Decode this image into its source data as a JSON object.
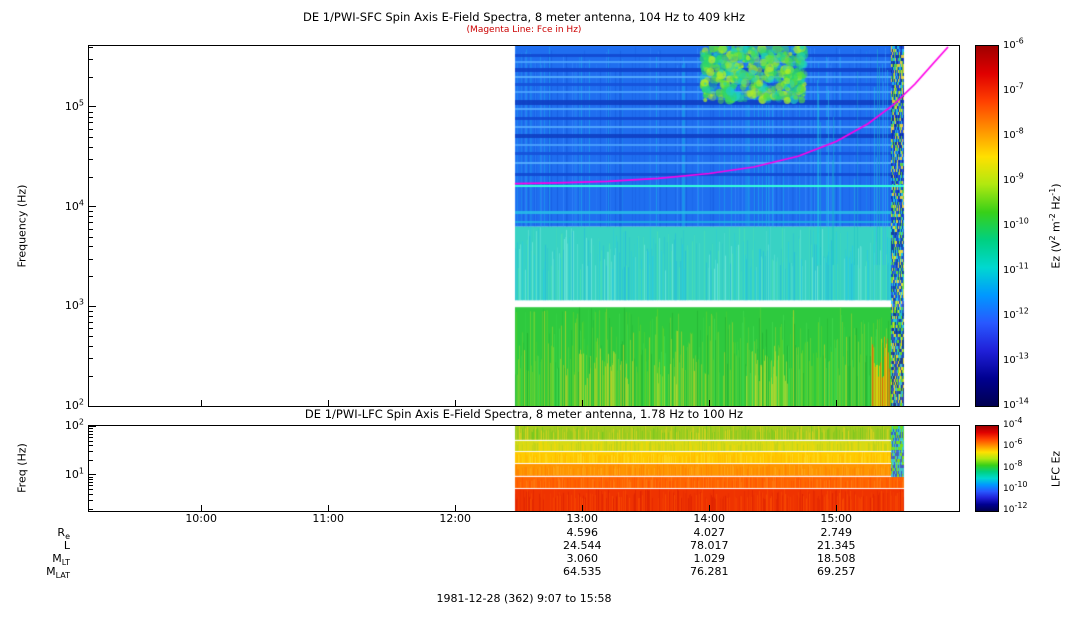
{
  "figure": {
    "footer": "1981-12-28 (362) 9:07 to 15:58",
    "background": "#ffffff"
  },
  "time_axis": {
    "range_hours": [
      9.1167,
      15.9667
    ],
    "start_label": "9:07",
    "end_label": "15:58",
    "ticks": [
      {
        "t": 10,
        "label": "10:00"
      },
      {
        "t": 11,
        "label": "11:00"
      },
      {
        "t": 12,
        "label": "12:00"
      },
      {
        "t": 13,
        "label": "13:00"
      },
      {
        "t": 14,
        "label": "14:00"
      },
      {
        "t": 15,
        "label": "15:00"
      }
    ]
  },
  "ephemeris": {
    "value_hours": [
      13,
      14,
      15
    ],
    "rows": [
      {
        "label": "R",
        "sub": "e",
        "values": [
          "4.596",
          "4.027",
          "2.749"
        ]
      },
      {
        "label": "L",
        "sub": "",
        "values": [
          "24.544",
          "78.017",
          "21.345"
        ]
      },
      {
        "label": "M",
        "sub": "LT",
        "values": [
          "3.060",
          "1.029",
          "18.508"
        ]
      },
      {
        "label": "M",
        "sub": "LAT",
        "values": [
          "64.535",
          "76.281",
          "69.257"
        ]
      }
    ]
  },
  "chart_data": [
    {
      "type": "heatmap",
      "instrument": "DE 1/PWI-SFC",
      "title": "DE 1/PWI-SFC  Spin Axis E-Field Spectra, 8 meter antenna, 104 Hz to 409 kHz",
      "subtitle": "(Magenta Line: Fce in Hz)",
      "subtitle_color": "#cc0000",
      "ylabel": "Frequency (Hz)",
      "y_scale": "log",
      "y_range_hz": [
        100,
        409000
      ],
      "y_tick_exponents": [
        5,
        4,
        3,
        2
      ],
      "data_time_span_hours": [
        12.47,
        15.53
      ],
      "colorbar": {
        "label_parts": [
          {
            "t": "Ez (V"
          },
          {
            "sup": "2"
          },
          {
            "t": " m"
          },
          {
            "sup": "-2"
          },
          {
            "t": " Hz"
          },
          {
            "sup": "-1"
          },
          {
            "t": ")"
          }
        ],
        "tick_exponents": [
          -6,
          -7,
          -8,
          -9,
          -10,
          -11,
          -12,
          -13,
          -14
        ],
        "colors": [
          "#a00000",
          "#e00000",
          "#ff4000",
          "#ff9000",
          "#ffe000",
          "#b0e810",
          "#38d018",
          "#00d080",
          "#00d8d0",
          "#0098ff",
          "#2858ff",
          "#2020d8",
          "#000090",
          "#000050"
        ]
      },
      "bands": [
        {
          "f0": 6300,
          "f1": 409000,
          "base": "#1f6ef0",
          "streaks": [
            "#1254d8",
            "#3d92ff",
            "#18b8e8"
          ],
          "density": 0.3,
          "min_h": 0.85
        },
        {
          "f0": 1150,
          "f1": 6300,
          "base": "#38d2c4",
          "streaks": [
            "#1fb2e4",
            "#55e8a8",
            "#8ff0e4",
            "#20c8f0"
          ],
          "density": 0.75,
          "min_h": 0.4
        },
        {
          "f0": 100,
          "f1": 980,
          "base": "#2ec93e",
          "streaks": [
            "#aede2c",
            "#ffd31d",
            "#4fe457",
            "#1da32c",
            "#7fd81f"
          ],
          "density": 0.92,
          "min_h": 0.3
        }
      ],
      "h_stripes": [
        {
          "f": 340000,
          "color": "#1146cf",
          "w": 3
        },
        {
          "f": 290000,
          "color": "#4fa4ff",
          "w": 2
        },
        {
          "f": 245000,
          "color": "#0f40c8",
          "w": 4
        },
        {
          "f": 205000,
          "color": "#5cb2ff",
          "w": 2
        },
        {
          "f": 172000,
          "color": "#1550d8",
          "w": 3
        },
        {
          "f": 144000,
          "color": "#4fa4ff",
          "w": 2
        },
        {
          "f": 118000,
          "color": "#0e3cc0",
          "w": 5
        },
        {
          "f": 97000,
          "color": "#58acff",
          "w": 2
        },
        {
          "f": 80000,
          "color": "#1146cf",
          "w": 3
        },
        {
          "f": 65000,
          "color": "#58acff",
          "w": 2
        },
        {
          "f": 53000,
          "color": "#0e3cc0",
          "w": 4
        },
        {
          "f": 43000,
          "color": "#4fa4ff",
          "w": 2
        },
        {
          "f": 35000,
          "color": "#1550d8",
          "w": 3
        },
        {
          "f": 28000,
          "color": "#5cb2ff",
          "w": 2
        },
        {
          "f": 22000,
          "color": "#1146cf",
          "w": 3
        },
        {
          "f": 9000,
          "color": "#28c0e8",
          "w": 3
        },
        {
          "f": 7200,
          "color": "#1fb2e4",
          "w": 2
        }
      ],
      "hot_spots": [
        {
          "t0": 14.85,
          "t1": 15.43,
          "f0": 2600,
          "f1": 409000,
          "colors": [
            "#1fd8e0",
            "#3fa8ff",
            "#18c0c8"
          ],
          "density": 0.25,
          "alpha": 0.5
        },
        {
          "t0": 15.28,
          "t1": 15.53,
          "f0": 100,
          "f1": 650,
          "colors": [
            "#ff9600",
            "#ff5200",
            "#ffd800"
          ],
          "density": 0.9,
          "alpha": 0.85
        },
        {
          "t0": 12.9,
          "t1": 13.4,
          "f0": 100,
          "f1": 380,
          "colors": [
            "#ffe32a",
            "#ffd31d"
          ],
          "density": 0.4,
          "alpha": 0.55
        },
        {
          "t0": 14.25,
          "t1": 14.65,
          "f0": 100,
          "f1": 420,
          "colors": [
            "#ffe32a"
          ],
          "density": 0.3,
          "alpha": 0.5
        },
        {
          "t0": 13.55,
          "t1": 13.75,
          "f0": 100,
          "f1": 300,
          "colors": [
            "#ffe32a"
          ],
          "density": 0.3,
          "alpha": 0.5
        }
      ],
      "patch": {
        "t0": 13.95,
        "t1": 14.75,
        "f0": 115000,
        "f1": 400000,
        "colors": [
          "#2ad86a",
          "#b2ee26",
          "#1fd0c4",
          "#5ce234"
        ],
        "blobs": 550
      },
      "edge_column": {
        "t0": 15.43,
        "t1": 15.53,
        "f0": 100,
        "f1": 409000,
        "colors": [
          "#1038c8",
          "#1fc6e8",
          "#64dc28",
          "#ffd828",
          "#2450e0",
          "#0a2a9a"
        ]
      },
      "cyan_line_hz": 16000,
      "cyan_line_color": "#35ffdd",
      "fce_color": "#ff00e8",
      "fce_points": [
        [
          12.47,
          17000
        ],
        [
          12.8,
          17300
        ],
        [
          13.2,
          17900
        ],
        [
          13.6,
          19200
        ],
        [
          14.0,
          21500
        ],
        [
          14.35,
          25000
        ],
        [
          14.7,
          32000
        ],
        [
          15.0,
          45000
        ],
        [
          15.25,
          68000
        ],
        [
          15.45,
          105000
        ],
        [
          15.62,
          170000
        ],
        [
          15.76,
          270000
        ],
        [
          15.88,
          400000
        ]
      ]
    },
    {
      "type": "heatmap",
      "instrument": "DE 1/PWI-LFC",
      "title": "DE 1/PWI-LFC  Spin Axis E-Field Spectra, 8 meter antenna, 1.78 Hz to 100 Hz",
      "ylabel": "Freq (Hz)",
      "y_scale": "log",
      "y_range_hz": [
        1.78,
        100
      ],
      "y_tick_exponents": [
        2,
        1
      ],
      "data_time_span_hours": [
        12.47,
        15.53
      ],
      "colorbar": {
        "label_parts": [
          {
            "t": "LFC Ez"
          }
        ],
        "tick_exponents": [
          -4,
          -6,
          -8,
          -10,
          -12
        ],
        "colors": [
          "#a00000",
          "#e00000",
          "#ff4000",
          "#ff9000",
          "#ffe000",
          "#b0e810",
          "#38d018",
          "#00d080",
          "#00d8d0",
          "#0098ff",
          "#2858ff",
          "#2020d8",
          "#000090",
          "#000050"
        ]
      },
      "bands": [
        {
          "f0": 52,
          "f1": 100,
          "base": "#a6cc20",
          "streaks": [
            "#55c41e",
            "#ffd81e",
            "#7fcf1f"
          ],
          "density": 0.85,
          "min_h": 0.5
        },
        {
          "f0": 30,
          "f1": 52,
          "base": "#d6da16",
          "streaks": [
            "#ffd800",
            "#a6cc20"
          ],
          "density": 0.7,
          "min_h": 0.5
        },
        {
          "f0": 17,
          "f1": 30,
          "base": "#ffcb00",
          "streaks": [
            "#ffb000",
            "#ffe23c"
          ],
          "density": 0.65,
          "min_h": 0.5
        },
        {
          "f0": 9.5,
          "f1": 17,
          "base": "#ff9600",
          "streaks": [
            "#ff7600",
            "#ffb228"
          ],
          "density": 0.65,
          "min_h": 0.5
        },
        {
          "f0": 5.2,
          "f1": 9.5,
          "base": "#ff6500",
          "streaks": [
            "#ff4600",
            "#ff8a20"
          ],
          "density": 0.6,
          "min_h": 0.5
        },
        {
          "f0": 1.78,
          "f1": 5.2,
          "base": "#ef3300",
          "streaks": [
            "#d51800",
            "#ff5800"
          ],
          "density": 0.6,
          "min_h": 0.5
        }
      ],
      "band_boundaries": [
        52,
        30,
        17,
        9.5,
        5.2
      ],
      "edge_column": {
        "t0": 15.43,
        "t1": 15.53,
        "f0": 9,
        "f1": 100,
        "colors": [
          "#1fc6e8",
          "#2450e0",
          "#64dc28"
        ]
      }
    }
  ]
}
